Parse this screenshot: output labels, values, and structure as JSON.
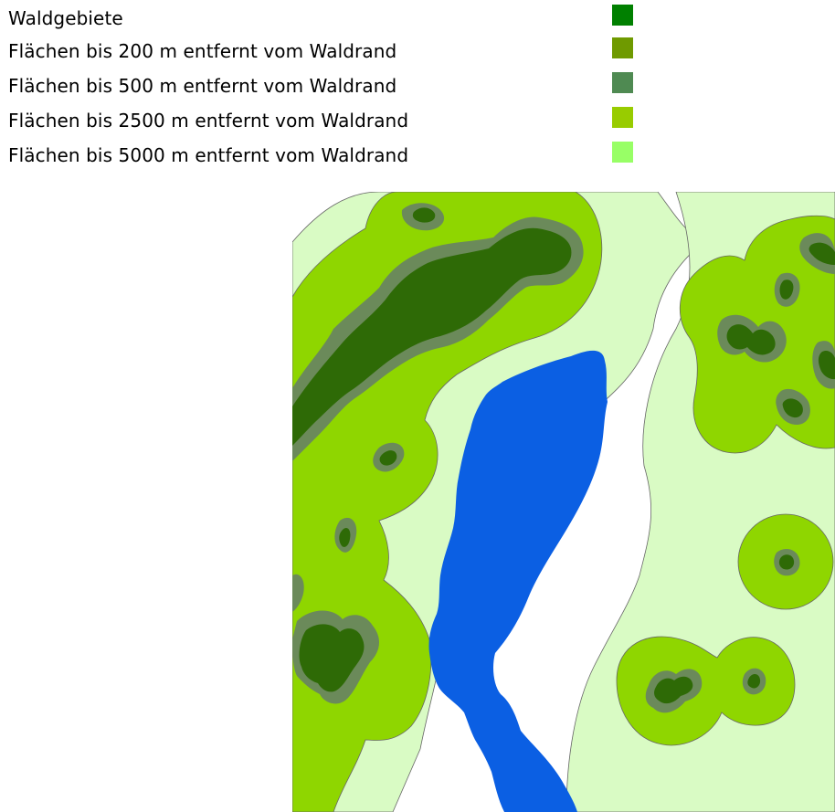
{
  "legend": {
    "items": [
      {
        "label": "Waldgebiete",
        "color": "#008000"
      },
      {
        "label": "Flächen bis 200 m entfernt vom Waldrand",
        "color": "#6f9a00"
      },
      {
        "label": "Flächen bis 500 m entfernt vom Waldrand",
        "color": "#4f8a52"
      },
      {
        "label": "Flächen bis 2500 m entfernt vom Waldrand",
        "color": "#98cc00"
      },
      {
        "label": "Flächen bis 5000 m entfernt vom Waldrand",
        "color": "#98ff66"
      }
    ]
  },
  "map": {
    "colors": {
      "forest": "#2e6a06",
      "buffer_200": "#6b8a5a",
      "buffer_2500": "#8fd600",
      "buffer_5000": "#d9fbc4",
      "background": "#ffffff",
      "lake": "#0b5fe3",
      "outline": "#666666"
    }
  }
}
